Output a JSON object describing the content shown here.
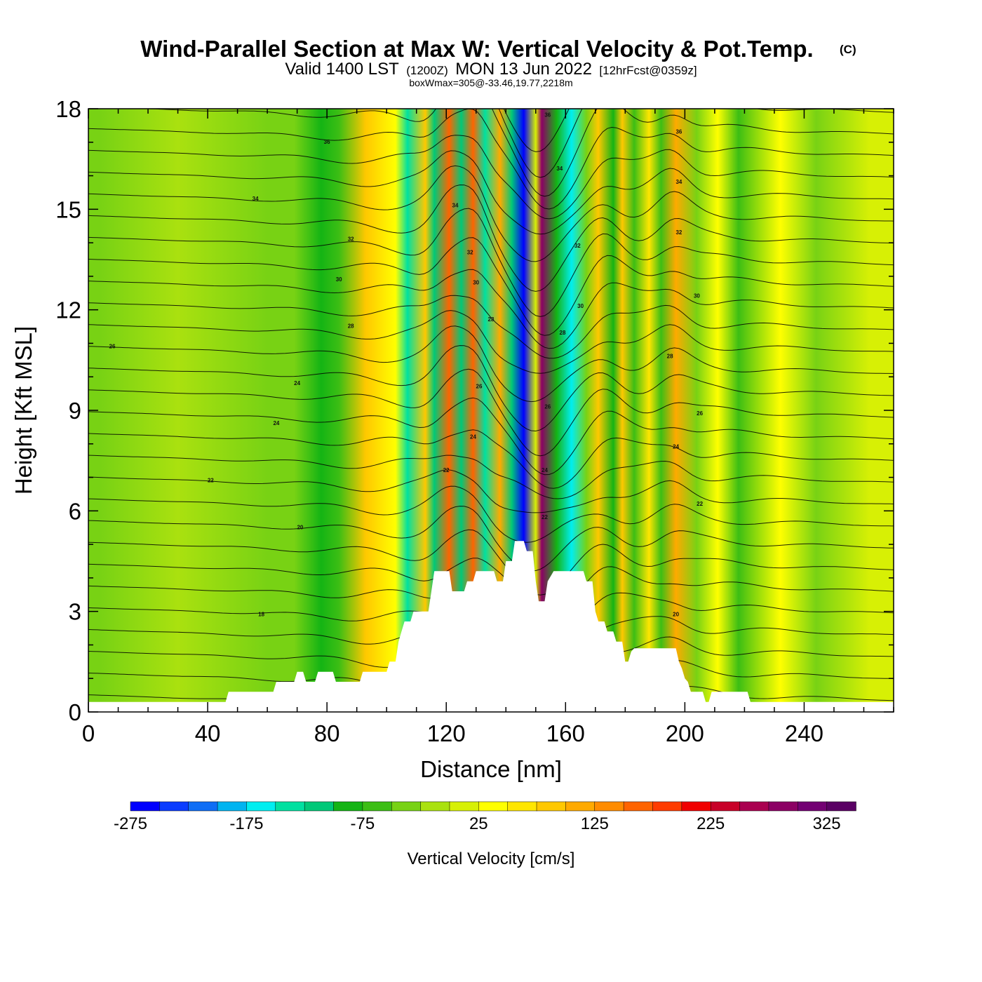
{
  "chart_data": {
    "type": "heatmap",
    "title": "Wind-Parallel Section at Max W: Vertical Velocity & Pot.Temp.",
    "copyright": "(C)",
    "subtitle": {
      "valid": "Valid 1400 LST",
      "utc": "(1200Z)",
      "date": "MON 13 Jun 2022",
      "forecast": "[12hrFcst@0359z]",
      "boxwmax": "boxWmax=305@-33.46,19.77,2218m"
    },
    "xlabel": "Distance [nm]",
    "ylabel": "Height [Kft MSL]",
    "xlim": [
      0,
      270
    ],
    "ylim": [
      0,
      18
    ],
    "x_ticks": [
      0,
      40,
      80,
      120,
      160,
      200,
      240
    ],
    "y_ticks": [
      0,
      3,
      6,
      9,
      12,
      15,
      18
    ],
    "colorbar": {
      "label": "Vertical Velocity [cm/s]",
      "min": -275,
      "max": 350,
      "step": 25,
      "tick_labels": [
        -275,
        -175,
        -75,
        25,
        125,
        225,
        325
      ],
      "colors": [
        "#0000ff",
        "#0a3cff",
        "#0f6ef5",
        "#00b4f0",
        "#00eef0",
        "#00e0a0",
        "#00c878",
        "#14b414",
        "#3cbe14",
        "#78d214",
        "#aae10f",
        "#d7f005",
        "#ffff00",
        "#ffe600",
        "#ffc800",
        "#ffaa00",
        "#ff8c00",
        "#ff6400",
        "#ff3c00",
        "#f00000",
        "#c80028",
        "#aa0050",
        "#8c0064",
        "#730073",
        "#5a0064"
      ]
    },
    "vertical_velocity_bands": [
      {
        "x": 4,
        "w": -40
      },
      {
        "x": 30,
        "w": -10
      },
      {
        "x": 60,
        "w": -30
      },
      {
        "x": 69,
        "w": -50
      },
      {
        "x": 78,
        "w": -100
      },
      {
        "x": 84,
        "w": -55
      },
      {
        "x": 93,
        "w": 80
      },
      {
        "x": 103,
        "w": 40
      },
      {
        "x": 107,
        "w": -150
      },
      {
        "x": 113,
        "w": 90
      },
      {
        "x": 116,
        "w": -120
      },
      {
        "x": 121,
        "w": 160
      },
      {
        "x": 125,
        "w": -110
      },
      {
        "x": 129,
        "w": 150
      },
      {
        "x": 133,
        "w": -150
      },
      {
        "x": 138,
        "w": 100
      },
      {
        "x": 142,
        "w": -125
      },
      {
        "x": 146,
        "w": -270
      },
      {
        "x": 150,
        "w": 0
      },
      {
        "x": 152,
        "w": 280
      },
      {
        "x": 157,
        "w": -95
      },
      {
        "x": 162,
        "w": -175
      },
      {
        "x": 167,
        "w": -30
      },
      {
        "x": 171,
        "w": 95
      },
      {
        "x": 176,
        "w": -85
      },
      {
        "x": 179,
        "w": 90
      },
      {
        "x": 183,
        "w": -60
      },
      {
        "x": 188,
        "w": 60
      },
      {
        "x": 192,
        "w": -55
      },
      {
        "x": 197,
        "w": 110
      },
      {
        "x": 204,
        "w": -45
      },
      {
        "x": 211,
        "w": 40
      },
      {
        "x": 218,
        "w": -60
      },
      {
        "x": 232,
        "w": 30
      },
      {
        "x": 244,
        "w": -50
      },
      {
        "x": 262,
        "w": 10
      }
    ],
    "terrain_kft": [
      [
        0,
        0.3
      ],
      [
        46,
        0.3
      ],
      [
        47,
        0.6
      ],
      [
        62,
        0.6
      ],
      [
        63,
        0.9
      ],
      [
        69,
        0.9
      ],
      [
        70,
        1.2
      ],
      [
        72,
        1.2
      ],
      [
        73,
        0.9
      ],
      [
        76,
        0.9
      ],
      [
        77,
        1.2
      ],
      [
        82,
        1.2
      ],
      [
        83,
        0.9
      ],
      [
        91,
        0.9
      ],
      [
        92,
        1.2
      ],
      [
        100,
        1.2
      ],
      [
        101,
        1.5
      ],
      [
        103,
        1.5
      ],
      [
        104,
        2.1
      ],
      [
        105,
        2.4
      ],
      [
        106,
        2.7
      ],
      [
        108,
        2.7
      ],
      [
        109,
        3.0
      ],
      [
        114,
        3.0
      ],
      [
        115,
        3.6
      ],
      [
        116,
        4.2
      ],
      [
        121,
        4.2
      ],
      [
        122,
        3.6
      ],
      [
        126,
        3.6
      ],
      [
        127,
        3.9
      ],
      [
        129,
        3.9
      ],
      [
        130,
        4.2
      ],
      [
        134,
        4.2
      ],
      [
        136,
        4.2
      ],
      [
        137,
        3.9
      ],
      [
        139,
        3.9
      ],
      [
        140,
        4.5
      ],
      [
        142,
        4.5
      ],
      [
        143,
        5.1
      ],
      [
        146,
        5.1
      ],
      [
        147,
        4.8
      ],
      [
        149,
        4.8
      ],
      [
        150,
        3.9
      ],
      [
        151,
        3.3
      ],
      [
        153,
        3.3
      ],
      [
        154,
        3.9
      ],
      [
        156,
        4.2
      ],
      [
        166,
        4.2
      ],
      [
        167,
        3.9
      ],
      [
        169,
        3.9
      ],
      [
        170,
        3.0
      ],
      [
        171,
        2.7
      ],
      [
        173,
        2.7
      ],
      [
        174,
        2.4
      ],
      [
        176,
        2.4
      ],
      [
        177,
        2.1
      ],
      [
        179,
        2.1
      ],
      [
        180,
        1.5
      ],
      [
        181,
        1.5
      ],
      [
        182,
        1.8
      ],
      [
        183,
        1.9
      ],
      [
        197,
        1.9
      ],
      [
        198,
        1.5
      ],
      [
        199,
        1.3
      ],
      [
        200,
        1.0
      ],
      [
        201,
        0.9
      ],
      [
        202,
        0.6
      ],
      [
        206,
        0.6
      ],
      [
        207,
        0.3
      ],
      [
        208,
        0.3
      ],
      [
        209,
        0.6
      ],
      [
        221,
        0.6
      ],
      [
        222,
        0.3
      ],
      [
        270,
        0.3
      ]
    ],
    "theta_contour_labels": [
      {
        "x": 8,
        "z": 10.9,
        "label": "26"
      },
      {
        "x": 70,
        "z": 9.8,
        "label": "24"
      },
      {
        "x": 63,
        "z": 8.6,
        "label": "24"
      },
      {
        "x": 41,
        "z": 6.9,
        "label": "22"
      },
      {
        "x": 71,
        "z": 5.5,
        "label": "20"
      },
      {
        "x": 58,
        "z": 2.9,
        "label": "18"
      },
      {
        "x": 80,
        "z": 17.0,
        "label": "36"
      },
      {
        "x": 56,
        "z": 15.3,
        "label": "34"
      },
      {
        "x": 88,
        "z": 14.1,
        "label": "32"
      },
      {
        "x": 84,
        "z": 12.9,
        "label": "30"
      },
      {
        "x": 88,
        "z": 11.5,
        "label": "28"
      },
      {
        "x": 123,
        "z": 15.1,
        "label": "34"
      },
      {
        "x": 128,
        "z": 13.7,
        "label": "32"
      },
      {
        "x": 130,
        "z": 12.8,
        "label": "30"
      },
      {
        "x": 135,
        "z": 11.7,
        "label": "28"
      },
      {
        "x": 131,
        "z": 9.7,
        "label": "26"
      },
      {
        "x": 129,
        "z": 8.2,
        "label": "24"
      },
      {
        "x": 120,
        "z": 7.2,
        "label": "22"
      },
      {
        "x": 154,
        "z": 17.8,
        "label": "36"
      },
      {
        "x": 158,
        "z": 16.2,
        "label": "34"
      },
      {
        "x": 164,
        "z": 13.9,
        "label": "32"
      },
      {
        "x": 165,
        "z": 12.1,
        "label": "30"
      },
      {
        "x": 159,
        "z": 11.3,
        "label": "28"
      },
      {
        "x": 154,
        "z": 9.1,
        "label": "26"
      },
      {
        "x": 153,
        "z": 7.2,
        "label": "24"
      },
      {
        "x": 153,
        "z": 5.8,
        "label": "22"
      },
      {
        "x": 198,
        "z": 17.3,
        "label": "36"
      },
      {
        "x": 198,
        "z": 15.8,
        "label": "34"
      },
      {
        "x": 198,
        "z": 14.3,
        "label": "32"
      },
      {
        "x": 204,
        "z": 12.4,
        "label": "30"
      },
      {
        "x": 195,
        "z": 10.6,
        "label": "28"
      },
      {
        "x": 205,
        "z": 8.9,
        "label": "26"
      },
      {
        "x": 197,
        "z": 7.9,
        "label": "24"
      },
      {
        "x": 205,
        "z": 6.2,
        "label": "22"
      },
      {
        "x": 197,
        "z": 2.9,
        "label": "20"
      }
    ]
  }
}
